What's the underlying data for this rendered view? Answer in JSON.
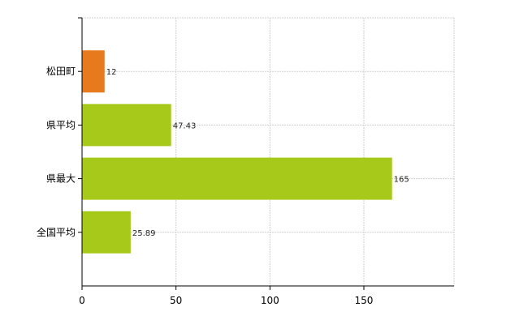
{
  "chart_data": {
    "type": "bar",
    "orientation": "horizontal",
    "categories": [
      "松田町",
      "県平均",
      "県最大",
      "全国平均"
    ],
    "values": [
      12,
      47.43,
      165,
      25.89
    ],
    "value_labels": [
      "12",
      "47.43",
      "165",
      "25.89"
    ],
    "colors": [
      "#e87a1e",
      "#a6c91a",
      "#a6c91a",
      "#a6c91a"
    ],
    "xlim": [
      0,
      198
    ],
    "xticks": [
      0,
      50,
      100,
      150
    ],
    "xtick_labels": [
      "0",
      "50",
      "100",
      "150"
    ],
    "grid": true,
    "legend": false
  }
}
